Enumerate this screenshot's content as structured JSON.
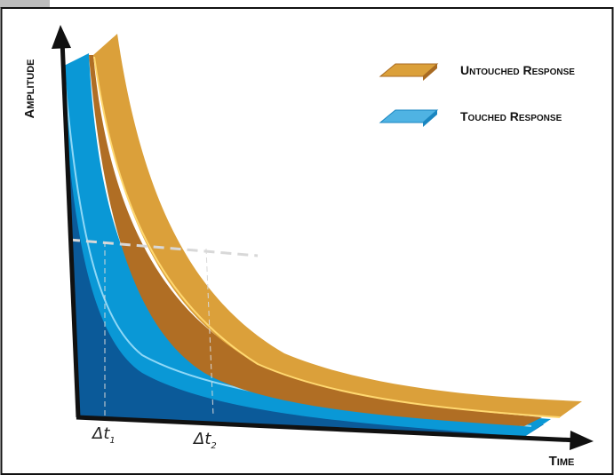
{
  "axes": {
    "y_label": "Amplitude",
    "x_label": "Time"
  },
  "legend": [
    {
      "label": "Untouched Response"
    },
    {
      "label": "Touched Response"
    }
  ],
  "markers": [
    {
      "text": "Δt",
      "subscript": "1"
    },
    {
      "text": "Δt",
      "subscript": "2"
    }
  ]
}
